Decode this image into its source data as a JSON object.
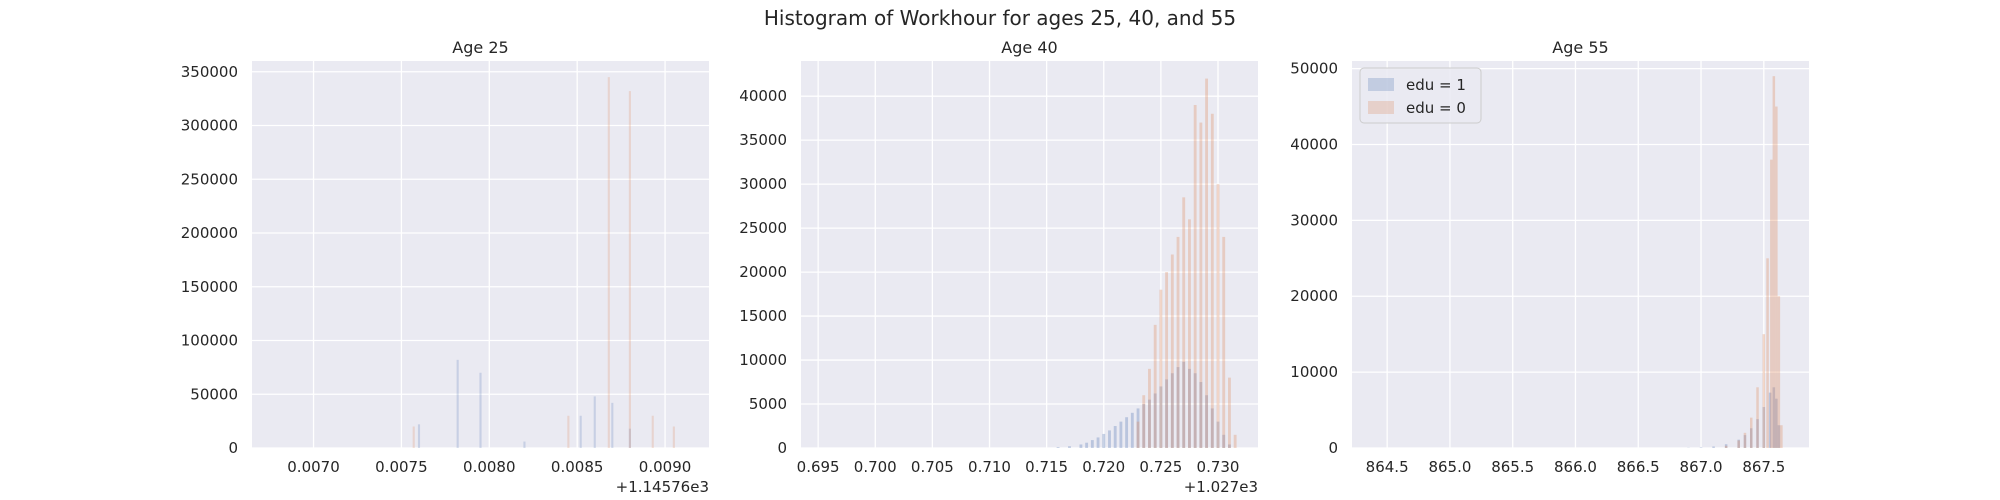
{
  "figure": {
    "suptitle": "Histogram of Workhour for ages 25, 40, and 55",
    "background": "#ffffff",
    "axes_facecolor": "#EAEAF2",
    "grid_color": "#ffffff",
    "series_colors": {
      "edu = 1": "#4C72B0",
      "edu = 0": "#DD8452",
      "overlay": "#8C8C5A"
    }
  },
  "chart_data": [
    {
      "type": "bar",
      "title": "Age 25",
      "xlabel": "",
      "ylabel": "",
      "grid": true,
      "xlim": [
        0.00665,
        0.00925
      ],
      "ylim": [
        0,
        360000
      ],
      "x_offset": "+1.14576e3",
      "xticks": [
        0.007,
        0.0075,
        0.008,
        0.0085,
        0.009
      ],
      "xtick_labels": [
        "0.0070",
        "0.0075",
        "0.0080",
        "0.0085",
        "0.0090"
      ],
      "yticks": [
        0,
        50000,
        100000,
        150000,
        200000,
        250000,
        300000,
        350000
      ],
      "ytick_labels": [
        "0",
        "50000",
        "100000",
        "150000",
        "200000",
        "250000",
        "300000",
        "350000"
      ],
      "bar_width": 1.2e-05,
      "series": [
        {
          "name": "edu = 1",
          "color": "#4C72B0",
          "alpha": 0.22,
          "x": [
            0.0076,
            0.00782,
            0.00795,
            0.0082,
            0.00852,
            0.0086,
            0.0087,
            0.0088
          ],
          "values": [
            22000,
            82000,
            70000,
            6000,
            30000,
            48000,
            42000,
            18000
          ]
        },
        {
          "name": "edu = 0",
          "color": "#DD8452",
          "alpha": 0.22,
          "x": [
            0.00757,
            0.00845,
            0.00868,
            0.0088,
            0.00893,
            0.00905
          ],
          "values": [
            20000,
            30000,
            345000,
            332000,
            30000,
            20000
          ]
        }
      ]
    },
    {
      "type": "bar",
      "title": "Age 40",
      "xlabel": "",
      "ylabel": "",
      "grid": true,
      "xlim": [
        0.6935,
        0.7335
      ],
      "ylim": [
        0,
        44000
      ],
      "x_offset": "+1.027e3",
      "xticks": [
        0.695,
        0.7,
        0.705,
        0.71,
        0.715,
        0.72,
        0.725,
        0.73
      ],
      "xtick_labels": [
        "0.695",
        "0.700",
        "0.705",
        "0.710",
        "0.715",
        "0.720",
        "0.725",
        "0.730"
      ],
      "yticks": [
        0,
        5000,
        10000,
        15000,
        20000,
        25000,
        30000,
        35000,
        40000
      ],
      "ytick_labels": [
        "0",
        "5000",
        "10000",
        "15000",
        "20000",
        "25000",
        "30000",
        "35000",
        "40000"
      ],
      "bar_width": 0.00025,
      "series": [
        {
          "name": "edu = 1",
          "color": "#4C72B0",
          "alpha": 0.3,
          "x": [
            0.716,
            0.717,
            0.718,
            0.7185,
            0.719,
            0.7195,
            0.72,
            0.7205,
            0.721,
            0.7215,
            0.722,
            0.7225,
            0.723,
            0.7235,
            0.724,
            0.7245,
            0.725,
            0.7255,
            0.726,
            0.7265,
            0.727,
            0.7275,
            0.728,
            0.7285,
            0.729,
            0.7295,
            0.73,
            0.7305,
            0.731
          ],
          "values": [
            100,
            200,
            400,
            600,
            900,
            1200,
            1600,
            2000,
            2500,
            3000,
            3500,
            4000,
            4500,
            5000,
            5500,
            6200,
            7000,
            7800,
            8500,
            9200,
            9800,
            9000,
            8500,
            7500,
            6000,
            4500,
            3000,
            1500,
            400
          ]
        },
        {
          "name": "edu = 0",
          "color": "#DD8452",
          "alpha": 0.3,
          "x": [
            0.723,
            0.7235,
            0.724,
            0.7245,
            0.725,
            0.7255,
            0.726,
            0.7265,
            0.727,
            0.7275,
            0.728,
            0.7285,
            0.729,
            0.7295,
            0.73,
            0.7305,
            0.731,
            0.7315
          ],
          "values": [
            3000,
            6000,
            9000,
            14000,
            18000,
            20000,
            22000,
            24000,
            28500,
            26000,
            39000,
            37000,
            42000,
            38000,
            30000,
            24000,
            8000,
            1500
          ]
        }
      ]
    },
    {
      "type": "bar",
      "title": "Age 55",
      "xlabel": "",
      "ylabel": "",
      "grid": true,
      "xlim": [
        864.22,
        867.86
      ],
      "ylim": [
        0,
        51000
      ],
      "x_offset": "",
      "xticks": [
        864.5,
        865.0,
        865.5,
        866.0,
        866.5,
        867.0,
        867.5
      ],
      "xtick_labels": [
        "864.5",
        "865.0",
        "865.5",
        "866.0",
        "866.5",
        "867.0",
        "867.5"
      ],
      "yticks": [
        0,
        10000,
        20000,
        30000,
        40000,
        50000
      ],
      "ytick_labels": [
        "0",
        "10000",
        "20000",
        "30000",
        "40000",
        "50000"
      ],
      "bar_width": 0.02,
      "legend_position": "top-left",
      "legend": [
        {
          "label": "edu = 1",
          "color": "#4C72B0"
        },
        {
          "label": "edu = 0",
          "color": "#DD8452"
        }
      ],
      "series": [
        {
          "name": "edu = 1",
          "color": "#4C72B0",
          "alpha": 0.3,
          "x": [
            866.9,
            867.0,
            867.1,
            867.2,
            867.3,
            867.35,
            867.4,
            867.45,
            867.5,
            867.55,
            867.58,
            867.6,
            867.62
          ],
          "values": [
            30,
            80,
            200,
            500,
            1100,
            1700,
            2600,
            3800,
            5400,
            7300,
            8000,
            6500,
            3000
          ]
        },
        {
          "name": "edu = 0",
          "color": "#DD8452",
          "alpha": 0.3,
          "x": [
            867.2,
            867.3,
            867.35,
            867.4,
            867.45,
            867.5,
            867.53,
            867.56,
            867.58,
            867.6,
            867.62,
            867.64
          ],
          "values": [
            300,
            1000,
            2000,
            4000,
            8000,
            15000,
            25000,
            38000,
            49000,
            45000,
            20000,
            3000
          ]
        }
      ]
    }
  ]
}
